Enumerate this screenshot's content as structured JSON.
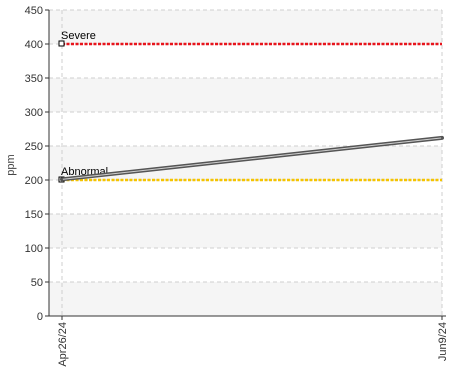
{
  "chart_data": {
    "type": "line",
    "title": "",
    "xlabel": "",
    "ylabel": "ppm",
    "ylim": [
      0,
      450
    ],
    "yticks": [
      0,
      50,
      100,
      150,
      200,
      250,
      300,
      350,
      400,
      450
    ],
    "x_tick_labels": [
      "Apr26/24",
      "Jun9/24"
    ],
    "grid": true,
    "series": [
      {
        "x": [
          "Apr26/24",
          "Jun9/24"
        ],
        "values": [
          201,
          262
        ],
        "color": "#555555"
      }
    ],
    "thresholds": [
      {
        "label": "Severe",
        "value": 400,
        "color": "#e8141c"
      },
      {
        "label": "Abnormal",
        "value": 200,
        "color": "#f5c400"
      }
    ],
    "band_colors": [
      "#f5f5f5",
      "#ffffff"
    ]
  }
}
